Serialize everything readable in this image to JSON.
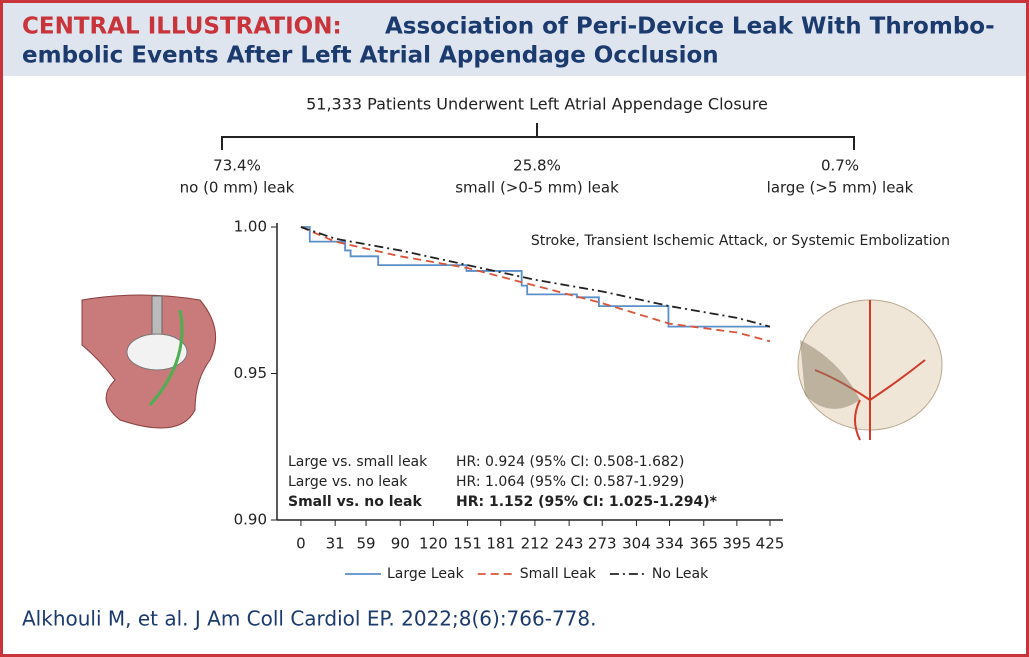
{
  "header": {
    "prefix": "CENTRAL ILLUSTRATION:",
    "title_lines": [
      "Association of Peri-Device Leak With Thrombo-",
      "embolic Events After Left Atrial Appendage Occlusion"
    ]
  },
  "tree": {
    "root": "51,333 Patients Underwent Left Atrial Appendage Closure",
    "branches": [
      {
        "percent": "73.4%",
        "label": "no (0 mm) leak"
      },
      {
        "percent": "25.8%",
        "label": "small (>0-5 mm) leak"
      },
      {
        "percent": "0.7%",
        "label": "large (>5 mm) leak"
      }
    ]
  },
  "chart_data": {
    "type": "line",
    "title": "Stroke, Transient Ischemic Attack, or Systemic Embolization",
    "xlim": [
      -21.7,
      436.8
    ],
    "xticks": [
      0,
      31,
      59,
      90,
      120,
      151,
      181,
      212,
      243,
      273,
      304,
      334,
      365,
      395,
      425
    ],
    "ylim": [
      0.9,
      1.0
    ],
    "yticks": [
      {
        "value": 0.9,
        "label": "0.90"
      },
      0.95,
      {
        "value": 1.0,
        "label": "1.00"
      }
    ],
    "series": [
      {
        "name": "Large Leak",
        "color": "#5b8fc9",
        "dash": "solid",
        "x": [
          0,
          8,
          8,
          40,
          40,
          45,
          45,
          70,
          70,
          150,
          150,
          200,
          200,
          205,
          205,
          250,
          250,
          270,
          270,
          333,
          333,
          425
        ],
        "values": [
          1.0,
          1.0,
          0.995,
          0.995,
          0.992,
          0.992,
          0.99,
          0.99,
          0.987,
          0.987,
          0.985,
          0.985,
          0.98,
          0.98,
          0.977,
          0.977,
          0.976,
          0.976,
          0.973,
          0.973,
          0.966,
          0.966
        ]
      },
      {
        "name": "Small Leak",
        "color": "#d9553a",
        "dash": "dashed",
        "x": [
          0,
          31,
          90,
          151,
          212,
          273,
          334,
          395,
          425
        ],
        "values": [
          1.0,
          0.995,
          0.99,
          0.986,
          0.98,
          0.974,
          0.967,
          0.964,
          0.961
        ]
      },
      {
        "name": "No Leak",
        "color": "#222222",
        "dash": "dashdot",
        "x": [
          0,
          31,
          90,
          151,
          212,
          273,
          334,
          395,
          425
        ],
        "values": [
          1.0,
          0.996,
          0.992,
          0.987,
          0.982,
          0.978,
          0.973,
          0.969,
          0.966
        ]
      }
    ],
    "annotations": [
      {
        "label": "Large vs. small leak",
        "text": "HR: 0.924 (95% CI: 0.508-1.682)",
        "bold": false
      },
      {
        "label": "Large vs. no leak",
        "text": "HR: 1.064 (95% CI: 0.587-1.929)",
        "bold": false
      },
      {
        "label": "Small vs. no leak",
        "text": "HR: 1.152 (95% CI: 1.025-1.294)*",
        "bold": true
      }
    ]
  },
  "citation": "Alkhouli M, et al. J Am Coll Cardiol EP. 2022;8(6):766-778."
}
